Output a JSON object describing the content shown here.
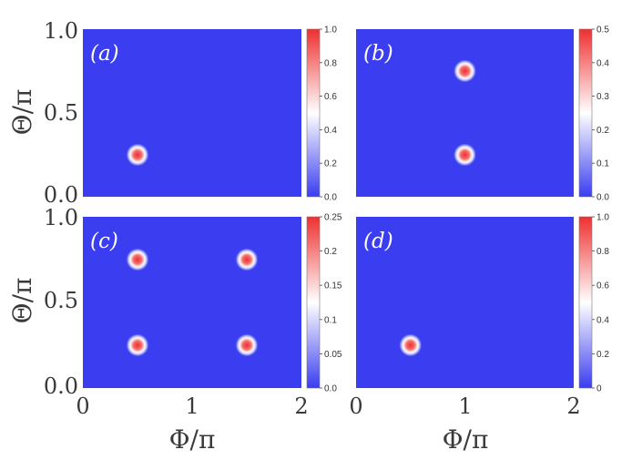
{
  "chart_data": {
    "type": "heatmap",
    "xlabel": "Φ/π",
    "ylabel": "Θ/π",
    "xlim": [
      0,
      2
    ],
    "ylim": [
      0,
      1
    ],
    "xticks": [
      "0",
      "1",
      "2"
    ],
    "yticks": [
      "0.0",
      "0.5",
      "1.0"
    ],
    "colorscale": [
      "#3a3df0",
      "#ffffff",
      "#ee3030"
    ],
    "panels": [
      {
        "label": "(a)",
        "cbar_max": 1.0,
        "cbar_ticks": [
          "0.0",
          "0.2",
          "0.4",
          "0.6",
          "0.8",
          "1.0"
        ],
        "peaks": [
          {
            "x": 0.5,
            "y": 0.25,
            "value": 1.0
          }
        ]
      },
      {
        "label": "(b)",
        "cbar_max": 0.5,
        "cbar_ticks": [
          "0.0",
          "0.1",
          "0.2",
          "0.3",
          "0.4",
          "0.5"
        ],
        "peaks": [
          {
            "x": 1.0,
            "y": 0.25,
            "value": 0.5
          },
          {
            "x": 1.0,
            "y": 0.75,
            "value": 0.5
          }
        ]
      },
      {
        "label": "(c)",
        "cbar_max": 0.25,
        "cbar_ticks": [
          "0.0",
          "0.05",
          "0.1",
          "0.15",
          "0.2",
          "0.25"
        ],
        "peaks": [
          {
            "x": 0.5,
            "y": 0.25,
            "value": 0.25
          },
          {
            "x": 1.5,
            "y": 0.25,
            "value": 0.25
          },
          {
            "x": 0.5,
            "y": 0.75,
            "value": 0.25
          },
          {
            "x": 1.5,
            "y": 0.75,
            "value": 0.25
          }
        ]
      },
      {
        "label": "(d)",
        "cbar_max": 1.0,
        "cbar_ticks": [
          "0",
          "0.2",
          "0.4",
          "0.6",
          "0.8",
          "1.0"
        ],
        "peaks": [
          {
            "x": 0.5,
            "y": 0.25,
            "value": 1.0
          }
        ]
      }
    ]
  }
}
